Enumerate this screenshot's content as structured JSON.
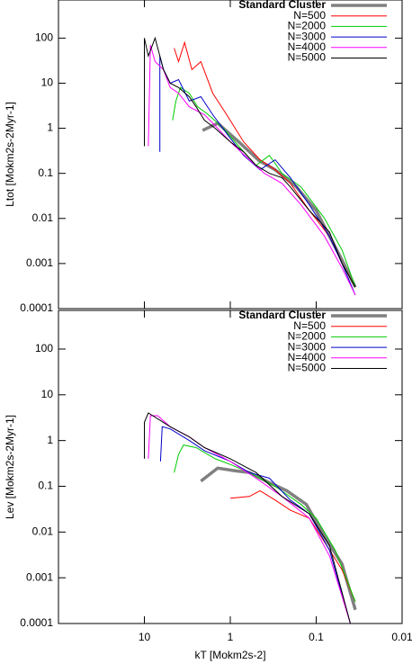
{
  "chart_data": [
    {
      "type": "line",
      "ylabel": "Ltot [Mokm2s-2Myr-1]",
      "log_x": true,
      "log_y": true,
      "xlim": [
        100,
        0.01
      ],
      "ylim": [
        0.0001,
        700
      ],
      "xticks": [
        10,
        1,
        0.1,
        0.01
      ],
      "yticks": [
        0.0001,
        0.001,
        0.01,
        0.1,
        1,
        10,
        100
      ],
      "legend": "upper right",
      "series": [
        {
          "name": "Standard Cluster",
          "color": "#808080",
          "x": [
            2.1,
            1.4,
            0.8,
            0.46,
            0.3,
            0.17,
            0.1,
            0.07,
            0.05,
            0.035
          ],
          "values": [
            0.9,
            1.3,
            0.5,
            0.19,
            0.12,
            0.05,
            0.015,
            0.004,
            0.0012,
            0.0003
          ]
        },
        {
          "name": "N=500",
          "color": "#ff0000",
          "x": [
            4.5,
            4,
            3.4,
            2.8,
            2.2,
            1.6,
            1.1,
            0.7,
            0.45,
            0.3,
            0.2,
            0.12,
            0.07,
            0.05,
            0.035
          ],
          "values": [
            60,
            30,
            80,
            20,
            30,
            6,
            2,
            0.5,
            0.2,
            0.12,
            0.06,
            0.015,
            0.004,
            0.001,
            0.0003
          ]
        },
        {
          "name": "N=2000",
          "color": "#00cc00",
          "x": [
            4.7,
            4.3,
            3.8,
            3,
            2.4,
            1.8,
            1.2,
            0.8,
            0.5,
            0.35,
            0.25,
            0.15,
            0.08,
            0.05,
            0.035
          ],
          "values": [
            1.5,
            4,
            8,
            6,
            3,
            2,
            1,
            0.4,
            0.15,
            0.25,
            0.1,
            0.05,
            0.01,
            0.002,
            0.0003
          ]
        },
        {
          "name": "N=3000",
          "color": "#0000cc",
          "x": [
            6.6,
            6.6,
            6,
            5,
            4,
            3,
            2.2,
            1.6,
            1,
            0.7,
            0.45,
            0.3,
            0.2,
            0.12,
            0.07,
            0.05,
            0.035
          ],
          "values": [
            0.3,
            40,
            20,
            10,
            12,
            4,
            5,
            2,
            0.6,
            0.25,
            0.12,
            0.2,
            0.08,
            0.02,
            0.004,
            0.001,
            0.0002
          ]
        },
        {
          "name": "N=4000",
          "color": "#ff00ff",
          "x": [
            9,
            8.5,
            7.5,
            6,
            5,
            4,
            3,
            2,
            1.4,
            1,
            0.6,
            0.4,
            0.25,
            0.15,
            0.08,
            0.05,
            0.035
          ],
          "values": [
            0.4,
            70,
            30,
            20,
            8,
            6,
            3,
            2,
            1,
            0.5,
            0.2,
            0.1,
            0.06,
            0.02,
            0.004,
            0.0008,
            0.0002
          ]
        },
        {
          "name": "N=5000",
          "color": "#000000",
          "x": [
            10,
            10,
            9,
            7.5,
            6,
            5,
            4,
            3,
            2.5,
            2,
            1.5,
            1,
            0.7,
            0.5,
            0.35,
            0.25,
            0.2,
            0.12,
            0.07,
            0.05,
            0.035
          ],
          "values": [
            0.4,
            100,
            40,
            100,
            20,
            10,
            8,
            5,
            3,
            1.5,
            1,
            0.5,
            0.3,
            0.15,
            0.1,
            0.08,
            0.05,
            0.015,
            0.005,
            0.001,
            0.0003
          ]
        }
      ]
    },
    {
      "type": "line",
      "ylabel": "Lev [Mokm2s-2Myr-1]",
      "xlabel": "kT [Mokm2s-2]",
      "log_x": true,
      "log_y": true,
      "xlim": [
        100,
        0.01
      ],
      "ylim": [
        0.0001,
        700
      ],
      "xticks": [
        10,
        1,
        0.1,
        0.01
      ],
      "yticks": [
        0.0001,
        0.001,
        0.01,
        0.1,
        1,
        10,
        100
      ],
      "legend": "upper right",
      "series": [
        {
          "name": "Standard Cluster",
          "color": "#808080",
          "x": [
            2.2,
            1.4,
            0.9,
            0.6,
            0.35,
            0.22,
            0.13,
            0.08,
            0.05,
            0.035
          ],
          "values": [
            0.13,
            0.25,
            0.22,
            0.2,
            0.12,
            0.08,
            0.04,
            0.008,
            0.002,
            0.0002
          ]
        },
        {
          "name": "N=500",
          "color": "#ff0000",
          "x": [
            1,
            0.6,
            0.45,
            0.3,
            0.2,
            0.12,
            0.08,
            0.05,
            0.035
          ],
          "values": [
            0.055,
            0.06,
            0.08,
            0.05,
            0.03,
            0.02,
            0.006,
            0.0015,
            0.0003
          ]
        },
        {
          "name": "N=2000",
          "color": "#00cc00",
          "x": [
            4.5,
            4,
            3.5,
            2.5,
            1.5,
            1,
            0.6,
            0.3,
            0.15,
            0.1,
            0.06,
            0.035
          ],
          "values": [
            0.2,
            0.5,
            0.8,
            0.7,
            0.4,
            0.3,
            0.2,
            0.1,
            0.04,
            0.02,
            0.004,
            0.0003
          ]
        },
        {
          "name": "N=3000",
          "color": "#0000cc",
          "x": [
            6.5,
            6.2,
            5,
            3,
            2,
            1,
            0.6,
            0.35,
            0.2,
            0.12,
            0.07,
            0.04
          ],
          "values": [
            0.35,
            2,
            1.8,
            1,
            0.6,
            0.35,
            0.2,
            0.15,
            0.05,
            0.025,
            0.004,
            0.0001
          ]
        },
        {
          "name": "N=4000",
          "color": "#ff00ff",
          "x": [
            9,
            8.5,
            7,
            5,
            3,
            2,
            1,
            0.5,
            0.25,
            0.12,
            0.07,
            0.04
          ],
          "values": [
            0.4,
            3.5,
            3.5,
            2,
            1.2,
            0.7,
            0.35,
            0.15,
            0.06,
            0.02,
            0.003,
            0.0001
          ]
        },
        {
          "name": "N=5000",
          "color": "#000000",
          "x": [
            10,
            10,
            9,
            7,
            5,
            3,
            2,
            1,
            0.5,
            0.25,
            0.12,
            0.07,
            0.04
          ],
          "values": [
            0.4,
            2.5,
            4,
            3,
            2,
            1.2,
            0.7,
            0.4,
            0.2,
            0.06,
            0.025,
            0.005,
            0.0001
          ]
        }
      ]
    }
  ]
}
